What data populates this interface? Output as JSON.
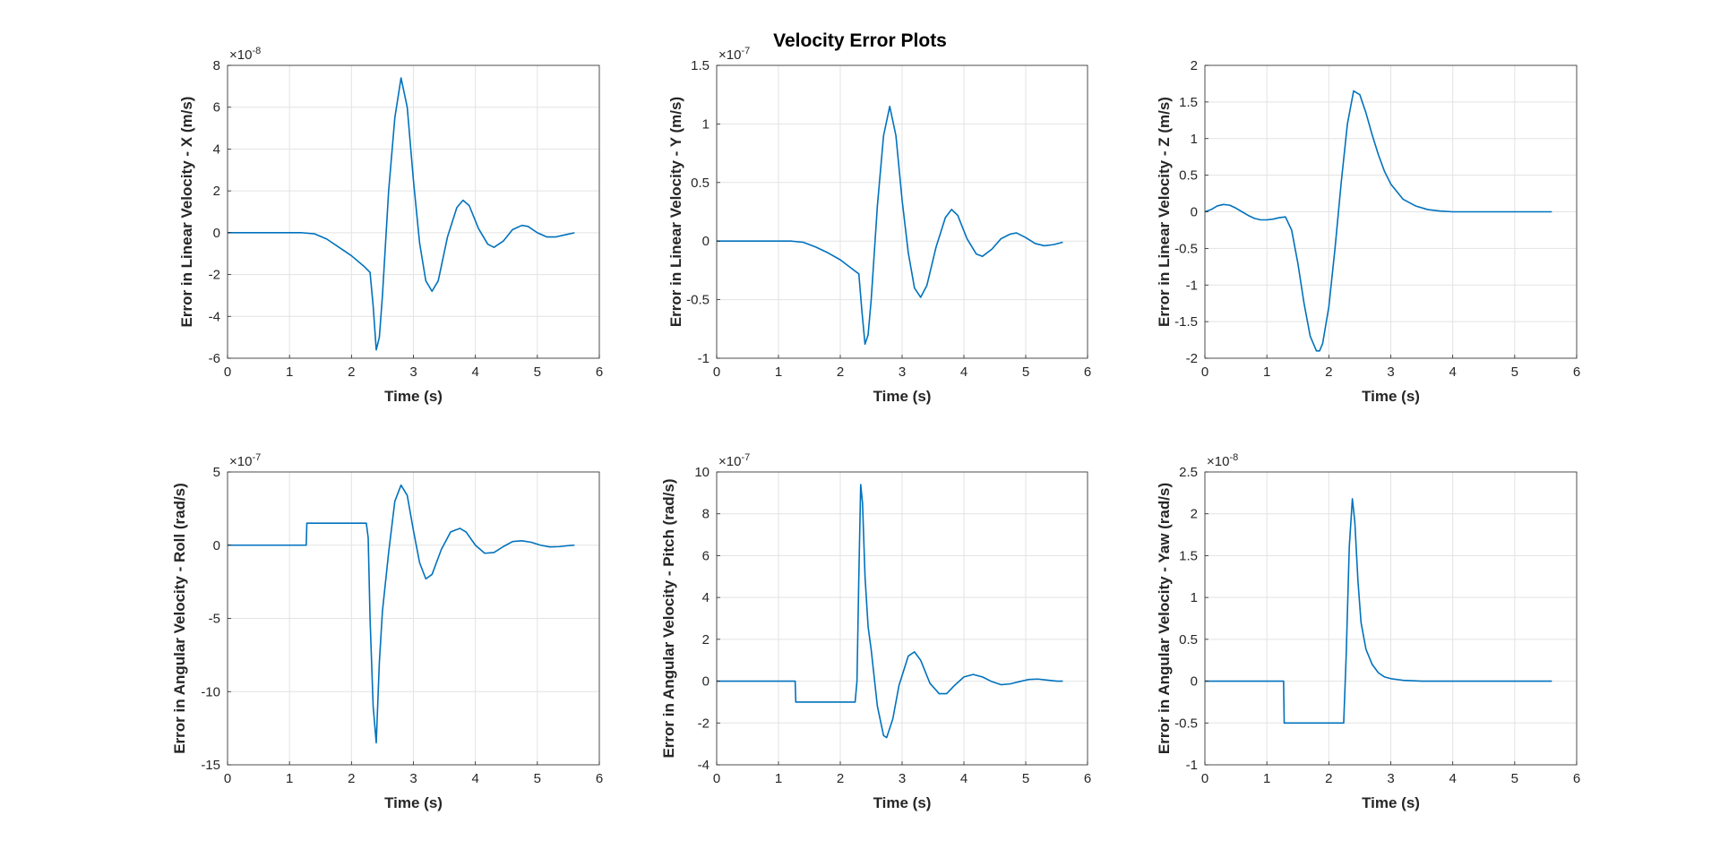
{
  "figure": {
    "title": "Velocity Error Plots",
    "line_color": "#0072BD"
  },
  "chart_data": [
    {
      "type": "line",
      "xlabel": "Time (s)",
      "ylabel": "Error in Linear Velocity - X (m/s)",
      "xlim": [
        0,
        6
      ],
      "ylim": [
        -6,
        8
      ],
      "xticks": [
        0,
        1,
        2,
        3,
        4,
        5,
        6
      ],
      "yticks": [
        -6,
        -4,
        -2,
        0,
        2,
        4,
        6,
        8
      ],
      "exponent": "-8",
      "grid": true,
      "x": [
        0,
        1.2,
        1.4,
        1.6,
        1.8,
        2.0,
        2.2,
        2.3,
        2.35,
        2.4,
        2.45,
        2.5,
        2.6,
        2.7,
        2.8,
        2.9,
        3.0,
        3.1,
        3.2,
        3.3,
        3.4,
        3.55,
        3.7,
        3.8,
        3.9,
        4.05,
        4.2,
        4.3,
        4.45,
        4.6,
        4.75,
        4.85,
        5.0,
        5.15,
        5.3,
        5.45,
        5.6
      ],
      "y": [
        0,
        0,
        -0.05,
        -0.3,
        -0.7,
        -1.1,
        -1.6,
        -1.9,
        -3.5,
        -5.6,
        -5.0,
        -3.0,
        2.0,
        5.5,
        7.4,
        6.0,
        2.5,
        -0.5,
        -2.3,
        -2.8,
        -2.3,
        -0.2,
        1.2,
        1.55,
        1.3,
        0.2,
        -0.55,
        -0.7,
        -0.4,
        0.15,
        0.35,
        0.3,
        0.0,
        -0.2,
        -0.2,
        -0.1,
        0.0
      ]
    },
    {
      "type": "line",
      "xlabel": "Time (s)",
      "ylabel": "Error in Linear Velocity - Y (m/s)",
      "xlim": [
        0,
        6
      ],
      "ylim": [
        -1,
        1.5
      ],
      "xticks": [
        0,
        1,
        2,
        3,
        4,
        5,
        6
      ],
      "yticks": [
        -1,
        -0.5,
        0,
        0.5,
        1,
        1.5
      ],
      "ytick_labels": [
        "-1",
        "-0.5",
        "0",
        "0.5",
        "1",
        "1.5"
      ],
      "exponent": "-7",
      "grid": true,
      "x": [
        0,
        1.2,
        1.4,
        1.6,
        1.8,
        2.0,
        2.2,
        2.3,
        2.35,
        2.4,
        2.45,
        2.5,
        2.6,
        2.7,
        2.8,
        2.9,
        3.0,
        3.1,
        3.2,
        3.3,
        3.4,
        3.55,
        3.7,
        3.8,
        3.9,
        4.05,
        4.2,
        4.3,
        4.45,
        4.6,
        4.75,
        4.85,
        5.0,
        5.15,
        5.3,
        5.45,
        5.6
      ],
      "y": [
        0,
        0,
        -0.01,
        -0.05,
        -0.1,
        -0.16,
        -0.24,
        -0.28,
        -0.6,
        -0.88,
        -0.8,
        -0.5,
        0.3,
        0.9,
        1.15,
        0.9,
        0.35,
        -0.1,
        -0.4,
        -0.48,
        -0.38,
        -0.05,
        0.2,
        0.27,
        0.22,
        0.02,
        -0.11,
        -0.13,
        -0.07,
        0.02,
        0.06,
        0.07,
        0.03,
        -0.02,
        -0.04,
        -0.03,
        -0.01
      ]
    },
    {
      "type": "line",
      "xlabel": "Time (s)",
      "ylabel": "Error in Linear Velocity - Z (m/s)",
      "xlim": [
        0,
        6
      ],
      "ylim": [
        -2,
        2
      ],
      "xticks": [
        0,
        1,
        2,
        3,
        4,
        5,
        6
      ],
      "yticks": [
        -2,
        -1.5,
        -1,
        -0.5,
        0,
        0.5,
        1,
        1.5,
        2
      ],
      "ytick_labels": [
        "-2",
        "-1.5",
        "-1",
        "-0.5",
        "0",
        "0.5",
        "1",
        "1.5",
        "2"
      ],
      "exponent": "",
      "grid": true,
      "x": [
        0,
        0.1,
        0.2,
        0.3,
        0.4,
        0.5,
        0.6,
        0.7,
        0.8,
        0.9,
        1.0,
        1.1,
        1.2,
        1.3,
        1.4,
        1.5,
        1.6,
        1.7,
        1.8,
        1.85,
        1.9,
        2.0,
        2.1,
        2.2,
        2.3,
        2.4,
        2.5,
        2.6,
        2.7,
        2.8,
        2.9,
        3.0,
        3.2,
        3.4,
        3.6,
        3.8,
        4.0,
        4.5,
        5.0,
        5.6
      ],
      "y": [
        0,
        0.03,
        0.08,
        0.1,
        0.09,
        0.05,
        0.0,
        -0.05,
        -0.09,
        -0.11,
        -0.11,
        -0.1,
        -0.08,
        -0.07,
        -0.25,
        -0.7,
        -1.25,
        -1.7,
        -1.9,
        -1.9,
        -1.8,
        -1.3,
        -0.5,
        0.4,
        1.2,
        1.65,
        1.6,
        1.35,
        1.05,
        0.78,
        0.55,
        0.38,
        0.17,
        0.08,
        0.03,
        0.01,
        0.0,
        0.0,
        0.0,
        0.0
      ]
    },
    {
      "type": "line",
      "xlabel": "Time (s)",
      "ylabel": "Error in Angular Velocity - Roll (rad/s)",
      "xlim": [
        0,
        6
      ],
      "ylim": [
        -15,
        5
      ],
      "xticks": [
        0,
        1,
        2,
        3,
        4,
        5,
        6
      ],
      "yticks": [
        -15,
        -10,
        -5,
        0,
        5
      ],
      "exponent": "-7",
      "grid": true,
      "x": [
        0,
        1.27,
        1.28,
        1.4,
        2.24,
        2.27,
        2.3,
        2.35,
        2.4,
        2.45,
        2.5,
        2.6,
        2.7,
        2.8,
        2.9,
        3.0,
        3.1,
        3.2,
        3.3,
        3.45,
        3.6,
        3.75,
        3.85,
        4.0,
        4.15,
        4.3,
        4.45,
        4.6,
        4.75,
        4.9,
        5.05,
        5.2,
        5.35,
        5.5,
        5.6
      ],
      "y": [
        0,
        0,
        1.5,
        1.5,
        1.5,
        0.5,
        -5.0,
        -11.0,
        -13.5,
        -8.0,
        -4.5,
        -0.5,
        3.0,
        4.1,
        3.4,
        1.0,
        -1.2,
        -2.3,
        -2.0,
        -0.3,
        0.9,
        1.15,
        0.9,
        0.0,
        -0.55,
        -0.5,
        -0.1,
        0.25,
        0.3,
        0.2,
        0.0,
        -0.12,
        -0.1,
        -0.03,
        0.0
      ]
    },
    {
      "type": "line",
      "xlabel": "Time (s)",
      "ylabel": "Error in Angular Velocity - Pitch (rad/s)",
      "xlim": [
        0,
        6
      ],
      "ylim": [
        -4,
        10
      ],
      "xticks": [
        0,
        1,
        2,
        3,
        4,
        5,
        6
      ],
      "yticks": [
        -4,
        -2,
        0,
        2,
        4,
        6,
        8,
        10
      ],
      "exponent": "-7",
      "grid": true,
      "x": [
        0,
        1.27,
        1.28,
        1.4,
        2.24,
        2.27,
        2.3,
        2.33,
        2.36,
        2.4,
        2.45,
        2.5,
        2.6,
        2.7,
        2.75,
        2.85,
        2.95,
        3.1,
        3.2,
        3.3,
        3.45,
        3.6,
        3.72,
        3.85,
        4.0,
        4.15,
        4.3,
        4.45,
        4.6,
        4.75,
        4.9,
        5.05,
        5.2,
        5.35,
        5.5,
        5.6
      ],
      "y": [
        0,
        0,
        -1.0,
        -1.0,
        -1.0,
        0.0,
        5.0,
        9.4,
        8.5,
        5.0,
        2.6,
        1.5,
        -1.2,
        -2.6,
        -2.7,
        -1.8,
        -0.2,
        1.2,
        1.4,
        1.0,
        -0.1,
        -0.6,
        -0.6,
        -0.2,
        0.2,
        0.32,
        0.2,
        -0.02,
        -0.17,
        -0.13,
        -0.02,
        0.08,
        0.1,
        0.05,
        0.0,
        0.0
      ]
    },
    {
      "type": "line",
      "xlabel": "Time (s)",
      "ylabel": "Error in Angular Velocity - Yaw (rad/s)",
      "xlim": [
        0,
        6
      ],
      "ylim": [
        -1,
        2.5
      ],
      "xticks": [
        0,
        1,
        2,
        3,
        4,
        5,
        6
      ],
      "yticks": [
        -1,
        -0.5,
        0,
        0.5,
        1,
        1.5,
        2,
        2.5
      ],
      "ytick_labels": [
        "-1",
        "-0.5",
        "0",
        "0.5",
        "1",
        "1.5",
        "2",
        "2.5"
      ],
      "exponent": "-8",
      "grid": true,
      "x": [
        0,
        1.27,
        1.28,
        1.4,
        2.24,
        2.28,
        2.33,
        2.38,
        2.42,
        2.47,
        2.52,
        2.6,
        2.7,
        2.8,
        2.9,
        3.0,
        3.2,
        3.5,
        4.0,
        5.0,
        5.6
      ],
      "y": [
        0,
        0,
        -0.5,
        -0.5,
        -0.5,
        0.3,
        1.6,
        2.18,
        1.9,
        1.2,
        0.7,
        0.38,
        0.2,
        0.1,
        0.05,
        0.03,
        0.01,
        0.0,
        0.0,
        0.0,
        0.0
      ]
    }
  ]
}
